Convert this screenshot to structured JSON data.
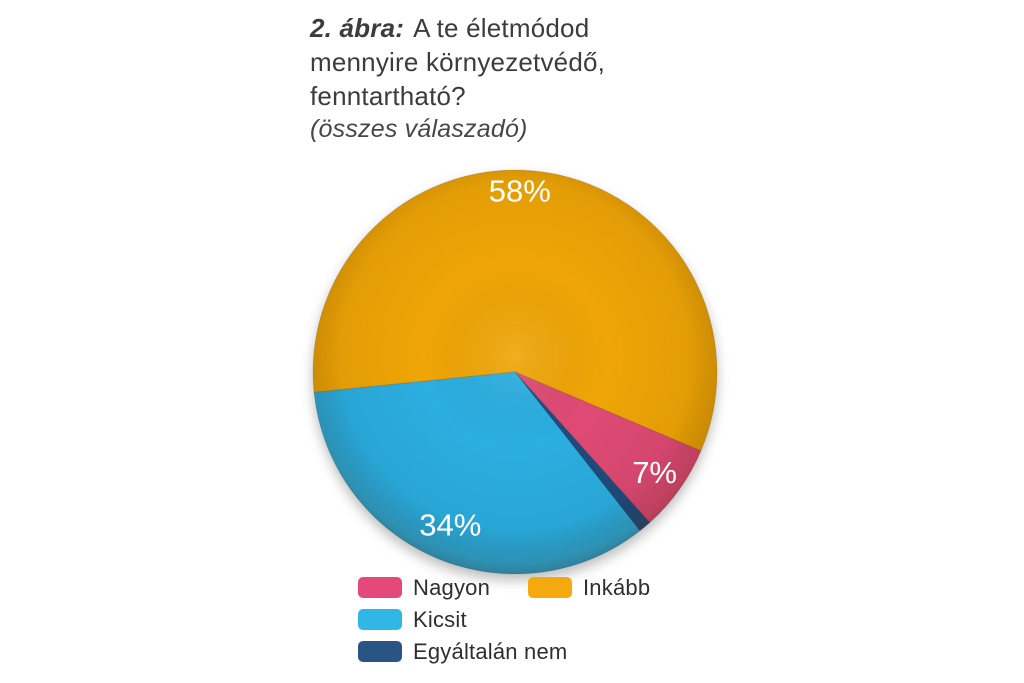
{
  "figure": {
    "title_prefix": "2. ábra:",
    "title_text": "A te életmódod mennyire környezetvédő, fenntartható?",
    "subtitle": "(összes válaszadó)"
  },
  "chart_data": {
    "type": "pie",
    "title": "2. ábra: A te életmódod mennyire környezetvédő, fenntartható?",
    "subtitle": "(összes válaszadó)",
    "unit": "%",
    "start_angle_deg_cw_from_top": 264.2,
    "slices": [
      {
        "label": "Inkább",
        "value": 58,
        "color": "#EFA506",
        "show_pct_label": true,
        "label_r_frac": 0.9,
        "label_angle_deg": 1.5
      },
      {
        "label": "Nagyon",
        "value": 7,
        "color": "#DF4A74",
        "show_pct_label": true,
        "label_r_frac": 0.85
      },
      {
        "label": "Egyáltalán nem",
        "value": 1,
        "color": "#1F4C7E",
        "show_pct_label": false
      },
      {
        "label": "Kicsit",
        "value": 34,
        "color": "#2BAEE0",
        "show_pct_label": true,
        "label_r_frac": 0.82
      }
    ],
    "legend_position": "bottom",
    "legend": [
      {
        "label": "Nagyon",
        "color": "#E5497B"
      },
      {
        "label": "Inkább",
        "color": "#F5A90F"
      },
      {
        "label": "Kicsit",
        "color": "#30B7E6"
      },
      {
        "label": "Egyáltalán nem",
        "color": "#2A5484"
      }
    ]
  }
}
